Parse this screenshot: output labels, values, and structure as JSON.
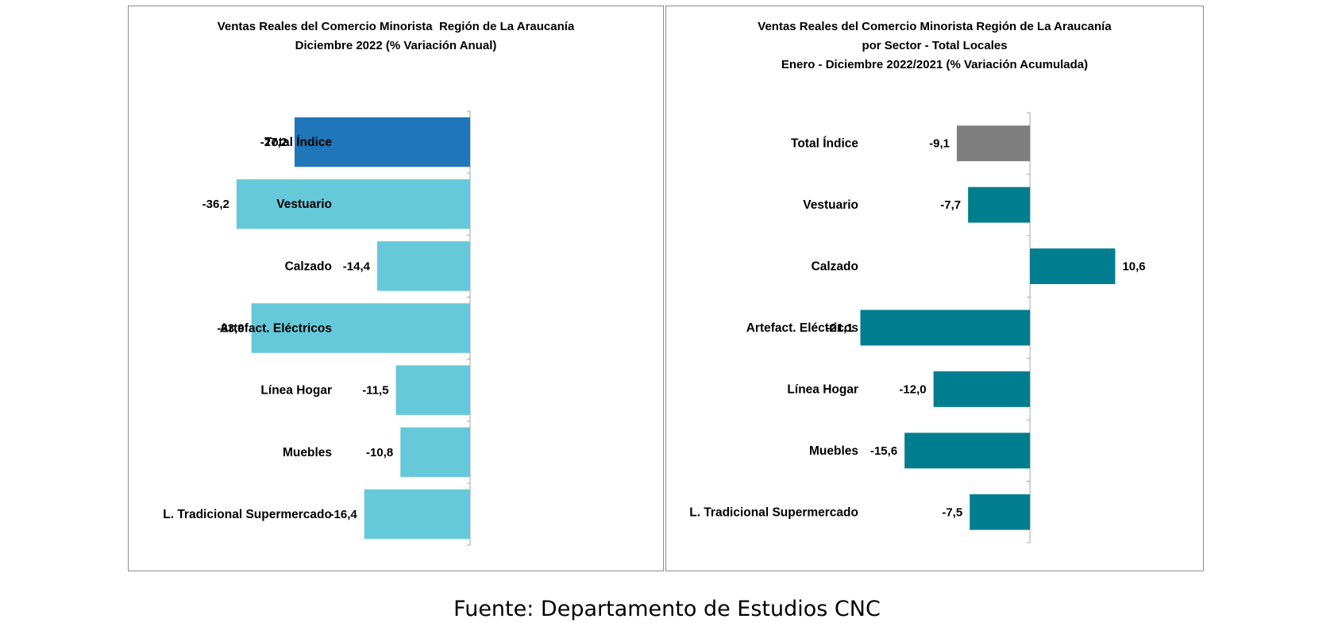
{
  "chart_data": [
    {
      "type": "bar",
      "orientation": "horizontal",
      "title_lines": [
        "Ventas Reales del Comercio Minorista  Región de La Araucanía",
        "Diciembre 2022 (% Variación Anual)"
      ],
      "categories": [
        "Total Índice",
        "Vestuario",
        "Calzado",
        "Artefact. Eléctricos",
        "Línea Hogar",
        "Muebles",
        "L. Tradicional Supermercado"
      ],
      "values": [
        -27.2,
        -36.2,
        -14.4,
        -33.9,
        -11.5,
        -10.8,
        -16.4
      ],
      "labels": [
        "-27,2",
        "-36,2",
        "-14,4",
        "-33,9",
        "-11,5",
        "-10,8",
        "-16,4"
      ],
      "colors": [
        "#1f77b9",
        "#66c9d9",
        "#66c9d9",
        "#66c9d9",
        "#66c9d9",
        "#66c9d9",
        "#66c9d9"
      ],
      "xlim": [
        -40,
        0
      ]
    },
    {
      "type": "bar",
      "orientation": "horizontal",
      "title_lines": [
        "Ventas Reales del Comercio Minorista Región de La Araucanía",
        "por Sector - Total Locales",
        "Enero - Diciembre 2022/2021 (% Variación Acumulada)"
      ],
      "categories": [
        "Total Índice",
        "Vestuario",
        "Calzado",
        "Artefact. Eléctricos",
        "Línea Hogar",
        "Muebles",
        "L. Tradicional Supermercado"
      ],
      "values": [
        -9.1,
        -7.7,
        10.6,
        -21.1,
        -12.0,
        -15.6,
        -7.5
      ],
      "labels": [
        "-9,1",
        "-7,7",
        "10,6",
        "-21,1",
        "-12,0",
        "-15,6",
        "-7,5"
      ],
      "colors": [
        "#7f7f7f",
        "#007e8f",
        "#007e8f",
        "#007e8f",
        "#007e8f",
        "#007e8f",
        "#007e8f"
      ],
      "xlim": [
        -25,
        15
      ]
    }
  ],
  "source": "Fuente: Departamento de Estudios CNC"
}
